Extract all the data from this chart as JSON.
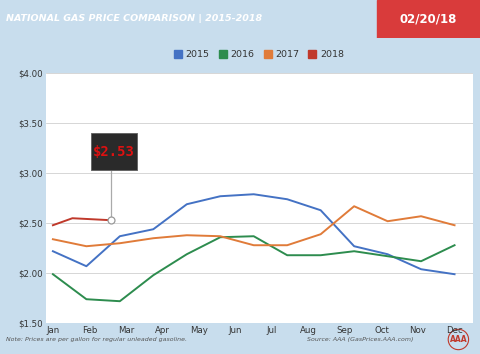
{
  "title_left": "NATIONAL GAS PRICE COMPARISON | 2015-2018",
  "title_right": "02/20/18",
  "title_bg": "#1f5fa6",
  "title_right_bg": "#d93b3b",
  "note_left": "Note: Prices are per gallon for regular unleaded gasoline.",
  "note_right": "Source: AAA (GasPrices.AAA.com)",
  "footer_bg": "#ccdff0",
  "chart_bg": "#ffffff",
  "outer_bg": "#c8dded",
  "ylim": [
    1.5,
    4.0
  ],
  "yticks": [
    1.5,
    2.0,
    2.5,
    3.0,
    3.5,
    4.0
  ],
  "months": [
    "Jan",
    "Feb",
    "Mar",
    "Apr",
    "May",
    "Jun",
    "Jul",
    "Aug",
    "Sep",
    "Oct",
    "Nov",
    "Dec"
  ],
  "series_2015": [
    2.22,
    2.07,
    2.37,
    2.44,
    2.69,
    2.77,
    2.79,
    2.74,
    2.63,
    2.27,
    2.19,
    2.04,
    1.99
  ],
  "series_2016": [
    1.99,
    1.74,
    1.72,
    1.98,
    2.19,
    2.36,
    2.37,
    2.18,
    2.18,
    2.22,
    2.17,
    2.12,
    2.28
  ],
  "series_2017": [
    2.34,
    2.27,
    2.3,
    2.35,
    2.38,
    2.37,
    2.28,
    2.28,
    2.39,
    2.67,
    2.52,
    2.57,
    2.48
  ],
  "series_2018": [
    2.48,
    2.55,
    2.54,
    2.53
  ],
  "color_2015": "#4472c4",
  "color_2016": "#2d8c4e",
  "color_2017": "#e07b39",
  "color_2018": "#c0392b",
  "annotation_text": "$2.53",
  "legend_labels": [
    "2015",
    "2016",
    "2017",
    "2018"
  ]
}
